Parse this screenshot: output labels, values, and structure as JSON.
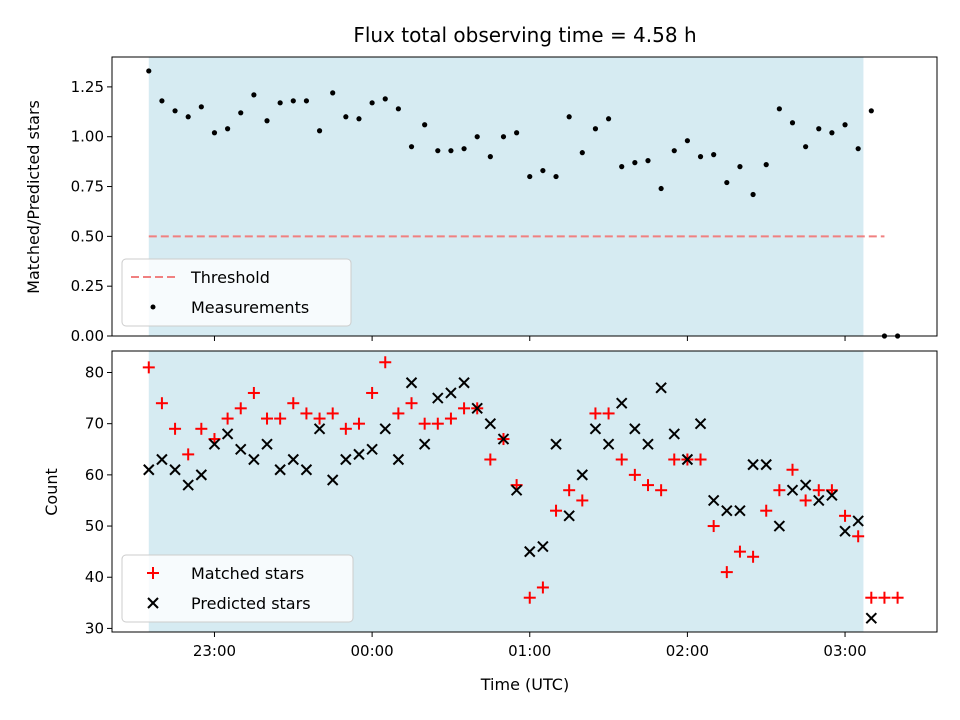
{
  "chart_data": {
    "type": "scatter",
    "title": "Flux total observing time = 4.58 h",
    "x_axis": {
      "label": "Time (UTC)",
      "type": "time",
      "range": [
        "22:21",
        "03:35"
      ],
      "ticks": [
        "23:00",
        "00:00",
        "01:00",
        "02:00",
        "03:00"
      ]
    },
    "shaded_interval": {
      "start": "22:35",
      "end": "03:07",
      "color": "#add8e6"
    },
    "top_panel": {
      "ylabel": "Matched/Predicted stars",
      "ylim": [
        0,
        1.4
      ],
      "yticks": [
        "0.00",
        "0.25",
        "0.50",
        "0.75",
        "1.00",
        "1.25"
      ],
      "legend": {
        "position": "lower-left",
        "entries": [
          "Threshold",
          "Measurements"
        ]
      },
      "threshold": {
        "name": "Threshold",
        "value": 0.5,
        "x_start": "22:35",
        "x_end": "03:15",
        "color": "#f08080",
        "style": "dashed"
      },
      "measurements": {
        "name": "Measurements",
        "color": "#000000",
        "points": [
          [
            "22:35",
            1.33
          ],
          [
            "22:40",
            1.18
          ],
          [
            "22:45",
            1.13
          ],
          [
            "22:50",
            1.1
          ],
          [
            "22:55",
            1.15
          ],
          [
            "23:00",
            1.02
          ],
          [
            "23:05",
            1.04
          ],
          [
            "23:10",
            1.12
          ],
          [
            "23:15",
            1.21
          ],
          [
            "23:20",
            1.08
          ],
          [
            "23:25",
            1.17
          ],
          [
            "23:30",
            1.18
          ],
          [
            "23:35",
            1.18
          ],
          [
            "23:40",
            1.03
          ],
          [
            "23:45",
            1.22
          ],
          [
            "23:50",
            1.1
          ],
          [
            "23:55",
            1.09
          ],
          [
            "00:00",
            1.17
          ],
          [
            "00:05",
            1.19
          ],
          [
            "00:10",
            1.14
          ],
          [
            "00:15",
            0.95
          ],
          [
            "00:20",
            1.06
          ],
          [
            "00:25",
            0.93
          ],
          [
            "00:30",
            0.93
          ],
          [
            "00:35",
            0.94
          ],
          [
            "00:40",
            1.0
          ],
          [
            "00:45",
            0.9
          ],
          [
            "00:50",
            1.0
          ],
          [
            "00:55",
            1.02
          ],
          [
            "01:00",
            0.8
          ],
          [
            "01:05",
            0.83
          ],
          [
            "01:10",
            0.8
          ],
          [
            "01:15",
            1.1
          ],
          [
            "01:20",
            0.92
          ],
          [
            "01:25",
            1.04
          ],
          [
            "01:30",
            1.09
          ],
          [
            "01:35",
            0.85
          ],
          [
            "01:40",
            0.87
          ],
          [
            "01:45",
            0.88
          ],
          [
            "01:50",
            0.74
          ],
          [
            "01:55",
            0.93
          ],
          [
            "02:00",
            0.98
          ],
          [
            "02:05",
            0.9
          ],
          [
            "02:10",
            0.91
          ],
          [
            "02:15",
            0.77
          ],
          [
            "02:20",
            0.85
          ],
          [
            "02:25",
            0.71
          ],
          [
            "02:30",
            0.86
          ],
          [
            "02:35",
            1.14
          ],
          [
            "02:40",
            1.07
          ],
          [
            "02:45",
            0.95
          ],
          [
            "02:50",
            1.04
          ],
          [
            "02:55",
            1.02
          ],
          [
            "03:00",
            1.06
          ],
          [
            "03:05",
            0.94
          ],
          [
            "03:10",
            1.13
          ],
          [
            "03:15",
            0.0
          ],
          [
            "03:20",
            0.0
          ]
        ]
      }
    },
    "bottom_panel": {
      "ylabel": "Count",
      "ylim": [
        29.3,
        84.2
      ],
      "yticks": [
        "30",
        "40",
        "50",
        "60",
        "70",
        "80"
      ],
      "legend": {
        "position": "lower-left",
        "entries": [
          "Matched stars",
          "Predicted stars"
        ]
      },
      "series": [
        {
          "name": "Matched stars",
          "marker": "plus",
          "color": "#ff0000",
          "points": [
            [
              "22:35",
              81
            ],
            [
              "22:40",
              74
            ],
            [
              "22:45",
              69
            ],
            [
              "22:50",
              64
            ],
            [
              "22:55",
              69
            ],
            [
              "23:00",
              67
            ],
            [
              "23:05",
              71
            ],
            [
              "23:10",
              73
            ],
            [
              "23:15",
              76
            ],
            [
              "23:20",
              71
            ],
            [
              "23:25",
              71
            ],
            [
              "23:30",
              74
            ],
            [
              "23:35",
              72
            ],
            [
              "23:40",
              71
            ],
            [
              "23:45",
              72
            ],
            [
              "23:50",
              69
            ],
            [
              "23:55",
              70
            ],
            [
              "00:00",
              76
            ],
            [
              "00:05",
              82
            ],
            [
              "00:10",
              72
            ],
            [
              "00:15",
              74
            ],
            [
              "00:20",
              70
            ],
            [
              "00:25",
              70
            ],
            [
              "00:30",
              71
            ],
            [
              "00:35",
              73
            ],
            [
              "00:40",
              73
            ],
            [
              "00:45",
              63
            ],
            [
              "00:50",
              67
            ],
            [
              "00:55",
              58
            ],
            [
              "01:00",
              36
            ],
            [
              "01:05",
              38
            ],
            [
              "01:10",
              53
            ],
            [
              "01:15",
              57
            ],
            [
              "01:20",
              55
            ],
            [
              "01:25",
              72
            ],
            [
              "01:30",
              72
            ],
            [
              "01:35",
              63
            ],
            [
              "01:40",
              60
            ],
            [
              "01:45",
              58
            ],
            [
              "01:50",
              57
            ],
            [
              "01:55",
              63
            ],
            [
              "02:00",
              63
            ],
            [
              "02:05",
              63
            ],
            [
              "02:10",
              50
            ],
            [
              "02:15",
              41
            ],
            [
              "02:20",
              45
            ],
            [
              "02:25",
              44
            ],
            [
              "02:30",
              53
            ],
            [
              "02:35",
              57
            ],
            [
              "02:40",
              61
            ],
            [
              "02:45",
              55
            ],
            [
              "02:50",
              57
            ],
            [
              "02:55",
              57
            ],
            [
              "03:00",
              52
            ],
            [
              "03:05",
              48
            ],
            [
              "03:10",
              36
            ],
            [
              "03:15",
              36
            ],
            [
              "03:20",
              36
            ]
          ]
        },
        {
          "name": "Predicted stars",
          "marker": "x",
          "color": "#000000",
          "points": [
            [
              "22:35",
              61
            ],
            [
              "22:40",
              63
            ],
            [
              "22:45",
              61
            ],
            [
              "22:50",
              58
            ],
            [
              "22:55",
              60
            ],
            [
              "23:00",
              66
            ],
            [
              "23:05",
              68
            ],
            [
              "23:10",
              65
            ],
            [
              "23:15",
              63
            ],
            [
              "23:20",
              66
            ],
            [
              "23:25",
              61
            ],
            [
              "23:30",
              63
            ],
            [
              "23:35",
              61
            ],
            [
              "23:40",
              69
            ],
            [
              "23:45",
              59
            ],
            [
              "23:50",
              63
            ],
            [
              "23:55",
              64
            ],
            [
              "00:00",
              65
            ],
            [
              "00:05",
              69
            ],
            [
              "00:10",
              63
            ],
            [
              "00:15",
              78
            ],
            [
              "00:20",
              66
            ],
            [
              "00:25",
              75
            ],
            [
              "00:30",
              76
            ],
            [
              "00:35",
              78
            ],
            [
              "00:40",
              73
            ],
            [
              "00:45",
              70
            ],
            [
              "00:50",
              67
            ],
            [
              "00:55",
              57
            ],
            [
              "01:00",
              45
            ],
            [
              "01:05",
              46
            ],
            [
              "01:10",
              66
            ],
            [
              "01:15",
              52
            ],
            [
              "01:20",
              60
            ],
            [
              "01:25",
              69
            ],
            [
              "01:30",
              66
            ],
            [
              "01:35",
              74
            ],
            [
              "01:40",
              69
            ],
            [
              "01:45",
              66
            ],
            [
              "01:50",
              77
            ],
            [
              "01:55",
              68
            ],
            [
              "02:00",
              63
            ],
            [
              "02:05",
              70
            ],
            [
              "02:10",
              55
            ],
            [
              "02:15",
              53
            ],
            [
              "02:20",
              53
            ],
            [
              "02:25",
              62
            ],
            [
              "02:30",
              62
            ],
            [
              "02:35",
              50
            ],
            [
              "02:40",
              57
            ],
            [
              "02:45",
              58
            ],
            [
              "02:50",
              55
            ],
            [
              "02:55",
              56
            ],
            [
              "03:00",
              49
            ],
            [
              "03:05",
              51
            ],
            [
              "03:10",
              32
            ]
          ]
        }
      ]
    }
  }
}
